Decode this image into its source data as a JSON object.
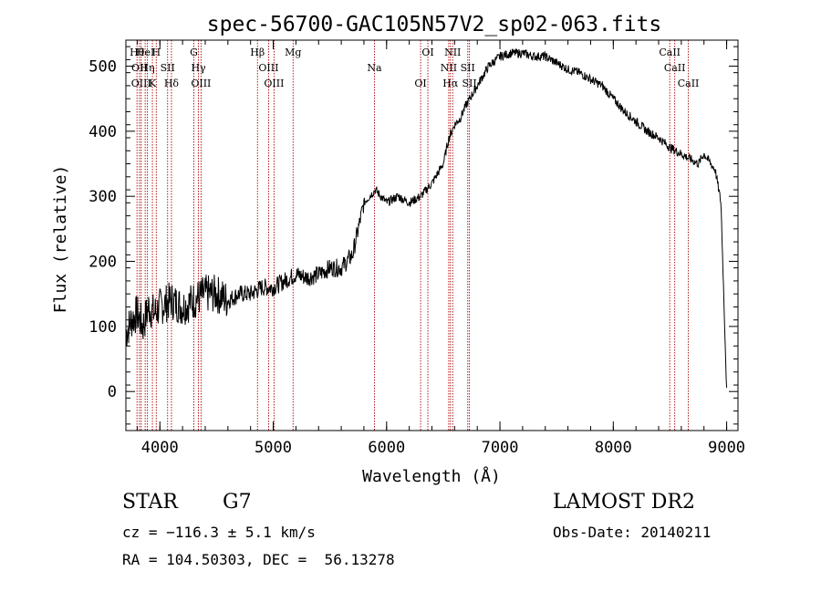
{
  "chart_data": {
    "type": "line",
    "title": "spec-56700-GAC105N57V2_sp02-063.fits",
    "xlabel": "Wavelength (Å)",
    "ylabel": "Flux (relative)",
    "xlim": [
      3700,
      9100
    ],
    "ylim": [
      -60,
      540
    ],
    "x_ticks": [
      4000,
      5000,
      6000,
      7000,
      8000,
      9000
    ],
    "y_ticks": [
      0,
      100,
      200,
      300,
      400,
      500
    ],
    "x_tick_labels": [
      "4000",
      "5000",
      "6000",
      "7000",
      "8000",
      "9000"
    ],
    "y_tick_labels": [
      "0",
      "100",
      "200",
      "300",
      "400",
      "500"
    ],
    "grid": false,
    "legend": "none",
    "line_color": "#000000",
    "marker_color": "#aa0000",
    "series": [
      {
        "x": [
          3700,
          3750,
          3800,
          3850,
          3900,
          3950,
          4000,
          4100,
          4200,
          4300,
          4400,
          4500,
          4600,
          4700,
          4800,
          4900,
          5000,
          5100,
          5200,
          5300,
          5400,
          5500,
          5600,
          5700,
          5750,
          5800,
          5900,
          6000,
          6100,
          6200,
          6300,
          6400,
          6500,
          6550,
          6600,
          6650,
          6700,
          6800,
          6900,
          7000,
          7100,
          7200,
          7300,
          7400,
          7500,
          7600,
          7700,
          7800,
          7900,
          8000,
          8100,
          8200,
          8300,
          8400,
          8500,
          8600,
          8700,
          8750,
          8800,
          8900,
          8950,
          9000
        ],
        "y": [
          90,
          110,
          120,
          100,
          130,
          120,
          130,
          140,
          130,
          140,
          150,
          150,
          140,
          150,
          150,
          160,
          160,
          170,
          180,
          175,
          180,
          190,
          190,
          210,
          250,
          290,
          310,
          290,
          300,
          290,
          300,
          320,
          350,
          390,
          410,
          420,
          440,
          470,
          500,
          515,
          520,
          520,
          515,
          515,
          505,
          495,
          490,
          480,
          470,
          450,
          430,
          415,
          400,
          390,
          375,
          365,
          355,
          350,
          365,
          340,
          290,
          0
        ]
      }
    ],
    "lines": [
      {
        "x": 3798,
        "label": "Hθ"
      },
      {
        "x": 3820,
        "label": "OII"
      },
      {
        "x": 3835,
        "label": "OIII"
      },
      {
        "x": 3870,
        "label": "HeI"
      },
      {
        "x": 3889,
        "label": "Hη"
      },
      {
        "x": 3934,
        "label": "K"
      },
      {
        "x": 3968,
        "label": "H"
      },
      {
        "x": 4068,
        "label": "SII"
      },
      {
        "x": 4102,
        "label": "Hδ"
      },
      {
        "x": 4300,
        "label": "G"
      },
      {
        "x": 4340,
        "label": "Hγ"
      },
      {
        "x": 4363,
        "label": "OIII"
      },
      {
        "x": 4861,
        "label": "Hβ"
      },
      {
        "x": 4959,
        "label": "OIII"
      },
      {
        "x": 5007,
        "label": "OIII"
      },
      {
        "x": 5175,
        "label": "Mg"
      },
      {
        "x": 5893,
        "label": "Na"
      },
      {
        "x": 6300,
        "label": "OI"
      },
      {
        "x": 6364,
        "label": "OI"
      },
      {
        "x": 6548,
        "label": "NII"
      },
      {
        "x": 6563,
        "label": "Hα"
      },
      {
        "x": 6583,
        "label": "NII"
      },
      {
        "x": 6716,
        "label": "SII"
      },
      {
        "x": 6731,
        "label": "SII"
      },
      {
        "x": 8498,
        "label": "CaII"
      },
      {
        "x": 8542,
        "label": "CaII"
      },
      {
        "x": 8662,
        "label": "CaII"
      }
    ]
  },
  "info": {
    "object_class": "STAR",
    "subclass": "G7",
    "survey": "LAMOST DR2",
    "cz": "cz = −116.3 ± 5.1 km/s",
    "obs_date": "Obs-Date: 20140211",
    "coords": "RA = 104.50303, DEC =  56.13278"
  }
}
